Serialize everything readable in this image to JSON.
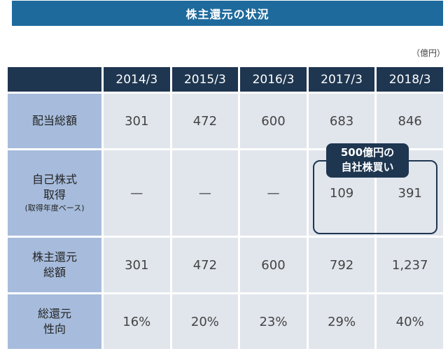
{
  "title": "株主還元の状況",
  "unit": "（億円）",
  "headers": [
    "2014/3",
    "2015/3",
    "2016/3",
    "2017/3",
    "2018/3"
  ],
  "rows": [
    {
      "label": [
        "配当総額"
      ],
      "sub": "",
      "values": [
        "301",
        "472",
        "600",
        "683",
        "846"
      ]
    },
    {
      "label": [
        "自己株式",
        "取得"
      ],
      "sub": "(取得年度ベース)",
      "values": [
        "—",
        "—",
        "—",
        "109",
        "391"
      ]
    },
    {
      "label": [
        "株主還元",
        "総額"
      ],
      "sub": "",
      "values": [
        "301",
        "472",
        "600",
        "792",
        "1,237"
      ]
    },
    {
      "label": [
        "総還元",
        "性向"
      ],
      "sub": "",
      "values": [
        "16%",
        "20%",
        "23%",
        "29%",
        "40%"
      ]
    }
  ],
  "callout": [
    "500億円の",
    "自社株買い"
  ]
}
